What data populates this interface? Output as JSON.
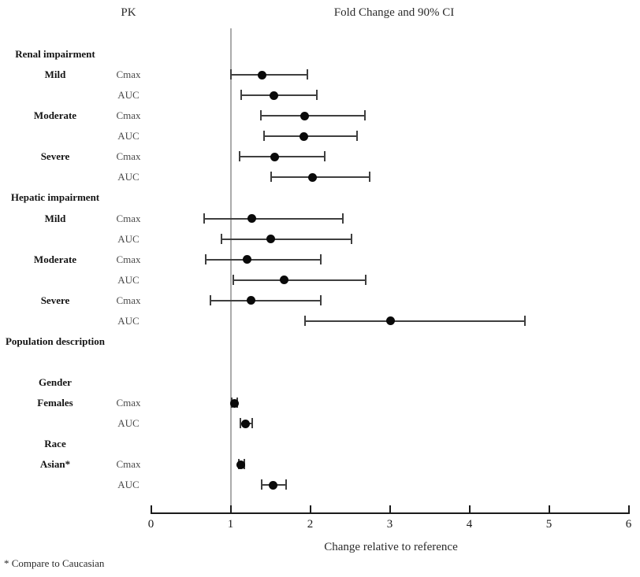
{
  "header": {
    "left_title": "PK",
    "right_title": "Fold Change and 90% CI"
  },
  "footnote": "* Compare to Caucasian",
  "colors": {
    "point": "#0a0a0a",
    "ci_line": "#3f3f3f",
    "reference_line": "#ababab",
    "param_text": "#4a4a4a",
    "axis": "#1a1a1a"
  },
  "chart_data": {
    "type": "forest",
    "title": "Fold Change and 90% CI",
    "left_column_title": "PK",
    "xlabel": "Change relative to reference",
    "xlim": [
      0,
      6
    ],
    "xticks": [
      0,
      1,
      2,
      3,
      4,
      5,
      6
    ],
    "reference_line": 1,
    "ci_level": "90%",
    "grid": false,
    "rows": [
      {
        "label": "Renal impairment",
        "label_style": "section"
      },
      {
        "label": "Mild",
        "label_style": "group",
        "param": "Cmax",
        "value": 1.4,
        "low": 1.0,
        "high": 1.97
      },
      {
        "param": "AUC",
        "value": 1.54,
        "low": 1.13,
        "high": 2.08
      },
      {
        "label": "Moderate",
        "label_style": "group",
        "param": "Cmax",
        "value": 1.93,
        "low": 1.38,
        "high": 2.69
      },
      {
        "param": "AUC",
        "value": 1.92,
        "low": 1.42,
        "high": 2.59
      },
      {
        "label": "Severe",
        "label_style": "group",
        "param": "Cmax",
        "value": 1.55,
        "low": 1.11,
        "high": 2.18
      },
      {
        "param": "AUC",
        "value": 2.03,
        "low": 1.51,
        "high": 2.75
      },
      {
        "label": "Hepatic impairment",
        "label_style": "section"
      },
      {
        "label": "Mild",
        "label_style": "group",
        "param": "Cmax",
        "value": 1.27,
        "low": 0.67,
        "high": 2.41
      },
      {
        "param": "AUC",
        "value": 1.5,
        "low": 0.89,
        "high": 2.52
      },
      {
        "label": "Moderate",
        "label_style": "group",
        "param": "Cmax",
        "value": 1.21,
        "low": 0.69,
        "high": 2.13
      },
      {
        "param": "AUC",
        "value": 1.67,
        "low": 1.03,
        "high": 2.7
      },
      {
        "label": "Severe",
        "label_style": "group",
        "param": "Cmax",
        "value": 1.26,
        "low": 0.75,
        "high": 2.13
      },
      {
        "param": "AUC",
        "value": 3.01,
        "low": 1.94,
        "high": 4.7
      },
      {
        "label": "Population description",
        "label_style": "section"
      },
      {},
      {
        "label": "Gender",
        "label_style": "group"
      },
      {
        "label": "Females",
        "label_style": "group",
        "param": "Cmax",
        "value": 1.05,
        "low": 1.01,
        "high": 1.08
      },
      {
        "param": "AUC",
        "value": 1.19,
        "low": 1.12,
        "high": 1.27
      },
      {
        "label": "Race",
        "label_style": "group"
      },
      {
        "label": "Asian*",
        "label_style": "group",
        "param": "Cmax",
        "value": 1.13,
        "low": 1.1,
        "high": 1.17
      },
      {
        "param": "AUC",
        "value": 1.53,
        "low": 1.39,
        "high": 1.7
      }
    ]
  }
}
